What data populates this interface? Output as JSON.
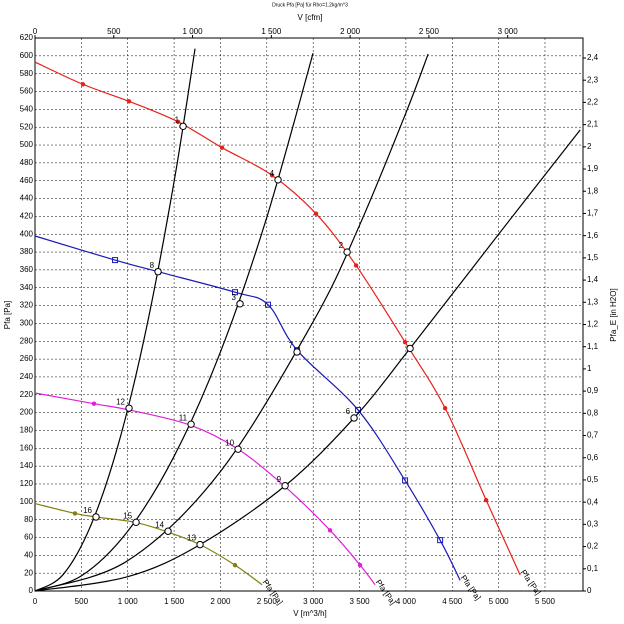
{
  "chart_data": {
    "type": "line",
    "title": "Druck Pfa [Pa] für Rho=1.2kg/m^3",
    "x_label": "V [m^3/h]",
    "x2_label": "V [cfm]",
    "y_label": "Pfa [Pa]",
    "y2_label": "Pfa_E [in H2O]",
    "xlim": [
      0,
      5910
    ],
    "xticks": [
      0,
      500,
      {
        "value": 1000,
        "label": "1 000"
      },
      {
        "value": 1500,
        "label": "1 500"
      },
      {
        "value": 2000,
        "label": "2 000"
      },
      {
        "value": 2500,
        "label": "2 500"
      },
      {
        "value": 3000,
        "label": "3 000"
      },
      {
        "value": 3500,
        "label": "3 500"
      },
      {
        "value": 4000,
        "label": "4 000"
      },
      {
        "value": 4500,
        "label": "4 500"
      },
      {
        "value": 5000,
        "label": "5 000"
      },
      {
        "value": 5500,
        "label": "5 500"
      }
    ],
    "x2lim": [
      0,
      3478
    ],
    "x2ticks": [
      0,
      500,
      {
        "value": 1000,
        "label": "1 000"
      },
      {
        "value": 1500,
        "label": "1 500"
      },
      {
        "value": 2000,
        "label": "2 000"
      },
      {
        "value": 2500,
        "label": "2 500"
      },
      {
        "value": 3000,
        "label": "3 000"
      }
    ],
    "ylim": [
      0,
      620
    ],
    "yticks": [
      0,
      20,
      40,
      60,
      80,
      100,
      120,
      140,
      160,
      180,
      200,
      220,
      240,
      260,
      280,
      300,
      320,
      340,
      360,
      380,
      400,
      420,
      440,
      460,
      480,
      500,
      520,
      540,
      560,
      580,
      600,
      620
    ],
    "y2lim": [
      0,
      2.49
    ],
    "y2ticks": [
      0,
      {
        "value": 0.1,
        "label": "0,1"
      },
      {
        "value": 0.2,
        "label": "0,2"
      },
      {
        "value": 0.3,
        "label": "0,3"
      },
      {
        "value": 0.4,
        "label": "0,4"
      },
      {
        "value": 0.5,
        "label": "0,5"
      },
      {
        "value": 0.6,
        "label": "0,6"
      },
      {
        "value": 0.7,
        "label": "0,7"
      },
      {
        "value": 0.8,
        "label": "0,8"
      },
      {
        "value": 0.9,
        "label": "0,9"
      },
      1,
      {
        "value": 1.1,
        "label": "1,1"
      },
      {
        "value": 1.2,
        "label": "1,2"
      },
      {
        "value": 1.3,
        "label": "1,3"
      },
      {
        "value": 1.4,
        "label": "1,4"
      },
      {
        "value": 1.5,
        "label": "1,5"
      },
      {
        "value": 1.6,
        "label": "1,6"
      },
      {
        "value": 1.7,
        "label": "1,7"
      },
      {
        "value": 1.8,
        "label": "1,8"
      },
      {
        "value": 1.9,
        "label": "1,9"
      },
      2,
      {
        "value": 2.1,
        "label": "2,1"
      },
      {
        "value": 2.2,
        "label": "2,2"
      },
      {
        "value": 2.3,
        "label": "2,3"
      },
      {
        "value": 2.4,
        "label": "2,4"
      }
    ],
    "grid": true,
    "series": [
      {
        "name": "Pfa [Pa]",
        "color": "#e8201a",
        "marker": "circle",
        "x": [
          0,
          518,
          1014,
          1543,
          2017,
          2557,
          3031,
          3463,
          3991,
          4423,
          4865,
          5232
        ],
        "values": [
          593,
          568,
          549,
          526,
          497,
          466,
          423,
          365,
          279,
          205,
          102,
          18
        ]
      },
      {
        "name": "Pfa [Pa]",
        "color": "#1a1ab8",
        "marker": "square",
        "x": [
          0,
          863,
          1327,
          2157,
          2513,
          2826,
          3484,
          3991,
          4369,
          4585
        ],
        "values": [
          398,
          371,
          358,
          335,
          321,
          270,
          203,
          124,
          57,
          12
        ]
      },
      {
        "name": "Pfa [Pa]",
        "color": "#e020d8",
        "marker": "circle",
        "x": [
          0,
          636,
          1014,
          1672,
          2190,
          2697,
          3182,
          3506,
          3668
        ],
        "values": [
          222,
          210,
          203,
          186,
          159,
          117,
          68,
          29,
          7
        ]
      },
      {
        "name": "Pfa [Pa]",
        "color": "#808010",
        "marker": "circle",
        "x": [
          0,
          431,
          658,
          1079,
          1435,
          1780,
          2157,
          2449
        ],
        "values": [
          98,
          87,
          83,
          77,
          66,
          52,
          29,
          7
        ]
      },
      {
        "color": "#000000",
        "x": [
          0,
          300,
          600,
          900,
          1200,
          1500,
          1726
        ],
        "values": [
          0,
          18,
          73,
          165,
          294,
          459,
          608
        ]
      },
      {
        "color": "#000000",
        "x": [
          0,
          500,
          1000,
          1500,
          2000,
          2500,
          2999
        ],
        "values": [
          0,
          17,
          67,
          151,
          268,
          419,
          603
        ]
      },
      {
        "color": "#000000",
        "x": [
          0,
          1000,
          2000,
          3000,
          3500,
          4000,
          4240
        ],
        "values": [
          0,
          34,
          134,
          302,
          410,
          536,
          602
        ]
      },
      {
        "color": "#000000",
        "x": [
          0,
          1000,
          1780,
          2697,
          3441,
          4045,
          5000,
          5880
        ],
        "values": [
          0,
          16,
          52,
          118,
          194,
          272,
          400,
          517
        ]
      }
    ],
    "operating_points": {
      "x": [
        1597,
        2621,
        3366,
        4045,
        1327,
        2211,
        2826,
        3441,
        1014,
        1683,
        2190,
        2697,
        658,
        1090,
        1435,
        1780
      ],
      "values": [
        521,
        461,
        380,
        272,
        358,
        322,
        268,
        194,
        205,
        187,
        159,
        118,
        83,
        77,
        67,
        52
      ],
      "labels": [
        "1",
        "4",
        "2",
        null,
        "8",
        "3",
        "7",
        "6",
        "12",
        "11",
        "10",
        "9",
        "16",
        "15",
        "14",
        "13"
      ]
    }
  }
}
